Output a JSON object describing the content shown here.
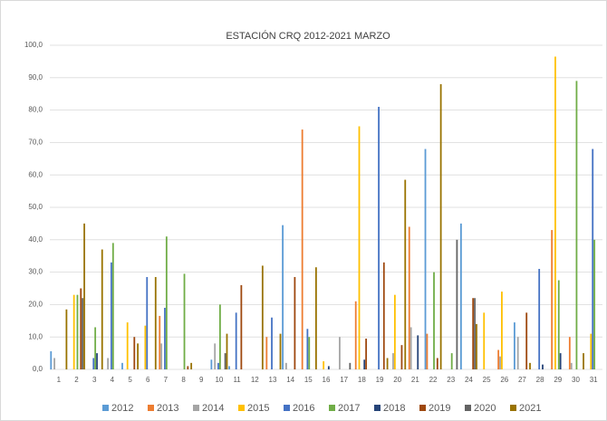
{
  "chart_data": {
    "type": "bar",
    "title": "ESTACIÓN CRQ 2012-2021 MARZO",
    "categories": [
      "1",
      "2",
      "3",
      "4",
      "5",
      "6",
      "7",
      "8",
      "9",
      "10",
      "11",
      "12",
      "13",
      "14",
      "15",
      "16",
      "17",
      "18",
      "19",
      "20",
      "21",
      "22",
      "23",
      "24",
      "25",
      "26",
      "27",
      "28",
      "29",
      "30",
      "31"
    ],
    "series": [
      {
        "name": "2012",
        "color": "#5b9bd5",
        "values": [
          5.6,
          0,
          0,
          0,
          2,
          0,
          0,
          0,
          0,
          3,
          1,
          0,
          0,
          44.5,
          0,
          0,
          0,
          0,
          0,
          0,
          0,
          68,
          0,
          45,
          0,
          0,
          14.5,
          0,
          0,
          0,
          0
        ]
      },
      {
        "name": "2013",
        "color": "#ed7d31",
        "values": [
          0,
          0,
          0,
          0,
          0,
          0,
          16.5,
          0,
          0,
          0,
          0,
          0,
          10,
          0,
          74,
          0,
          0,
          21,
          0,
          0,
          44,
          11,
          0,
          0,
          0,
          6,
          0,
          0,
          43,
          10,
          0
        ]
      },
      {
        "name": "2014",
        "color": "#a5a5a5",
        "values": [
          3.5,
          0,
          0,
          3.5,
          0,
          0,
          8,
          0,
          0,
          8,
          0,
          0,
          0,
          2,
          0,
          0,
          10,
          0,
          0,
          5,
          13,
          0,
          0,
          0,
          0,
          4,
          10,
          0,
          0,
          2,
          0
        ]
      },
      {
        "name": "2015",
        "color": "#ffc000",
        "values": [
          0,
          23,
          0,
          0,
          14.5,
          13.5,
          0,
          0,
          0,
          0,
          0,
          0,
          0,
          0,
          0,
          2.5,
          0,
          75,
          0,
          23,
          0,
          0,
          0,
          0,
          17.5,
          24,
          0,
          0,
          96.5,
          0,
          11
        ]
      },
      {
        "name": "2016",
        "color": "#4472c4",
        "values": [
          0,
          0,
          3.5,
          33,
          0,
          28.5,
          19,
          0,
          0,
          2,
          17.5,
          0,
          16,
          0,
          12.5,
          0,
          0,
          0,
          81,
          0,
          0,
          0,
          0,
          0,
          0,
          0,
          0,
          31,
          0,
          0,
          68
        ]
      },
      {
        "name": "2017",
        "color": "#70ad47",
        "values": [
          0,
          23,
          13,
          39,
          0,
          0,
          41,
          29.5,
          0,
          20,
          0,
          0,
          0,
          0,
          10,
          0,
          0,
          0,
          0,
          0,
          0,
          30,
          5,
          0,
          0,
          0,
          0,
          0,
          27.5,
          89,
          40
        ]
      },
      {
        "name": "2018",
        "color": "#264478",
        "values": [
          0,
          0,
          5,
          0,
          0,
          0,
          0,
          0,
          0,
          0,
          0,
          0,
          0,
          0,
          0,
          1,
          0,
          3,
          0,
          0,
          10.5,
          0,
          0,
          0,
          0,
          0,
          0,
          1.5,
          5,
          0,
          0
        ]
      },
      {
        "name": "2019",
        "color": "#9e480e",
        "values": [
          0,
          25,
          0,
          0,
          10,
          0,
          0,
          1,
          0,
          0,
          26,
          0,
          0,
          28.5,
          0,
          0,
          0,
          9.5,
          33,
          7.5,
          0,
          3.5,
          0,
          22,
          0,
          0,
          17.5,
          0,
          0,
          0,
          0
        ]
      },
      {
        "name": "2020",
        "color": "#636363",
        "values": [
          0,
          22,
          0,
          0,
          0,
          0,
          0,
          0,
          0,
          5,
          0,
          0,
          0,
          0,
          0,
          0,
          2,
          0,
          0,
          0,
          0,
          0,
          40,
          22,
          0,
          0,
          0,
          0,
          0,
          0,
          0
        ]
      },
      {
        "name": "2021",
        "color": "#997300",
        "values": [
          18.5,
          45,
          37,
          0,
          8,
          28.5,
          0,
          2,
          0,
          11,
          0,
          32,
          11,
          0,
          31.5,
          0,
          0,
          0,
          3.5,
          58.5,
          0,
          88,
          0,
          14,
          0,
          0,
          2,
          0,
          0,
          5,
          0
        ]
      }
    ],
    "ylim": [
      0,
      100
    ],
    "yticks": [
      {
        "value": 0,
        "label": "0,0"
      },
      {
        "value": 10,
        "label": "10,0"
      },
      {
        "value": 20,
        "label": "20,0"
      },
      {
        "value": 30,
        "label": "30,0"
      },
      {
        "value": 40,
        "label": "40,0"
      },
      {
        "value": 50,
        "label": "50,0"
      },
      {
        "value": 60,
        "label": "60,0"
      },
      {
        "value": 70,
        "label": "70,0"
      },
      {
        "value": 80,
        "label": "80,0"
      },
      {
        "value": 90,
        "label": "90,0"
      },
      {
        "value": 100,
        "label": "100,0"
      }
    ],
    "grid": true,
    "legend": "bottom"
  }
}
